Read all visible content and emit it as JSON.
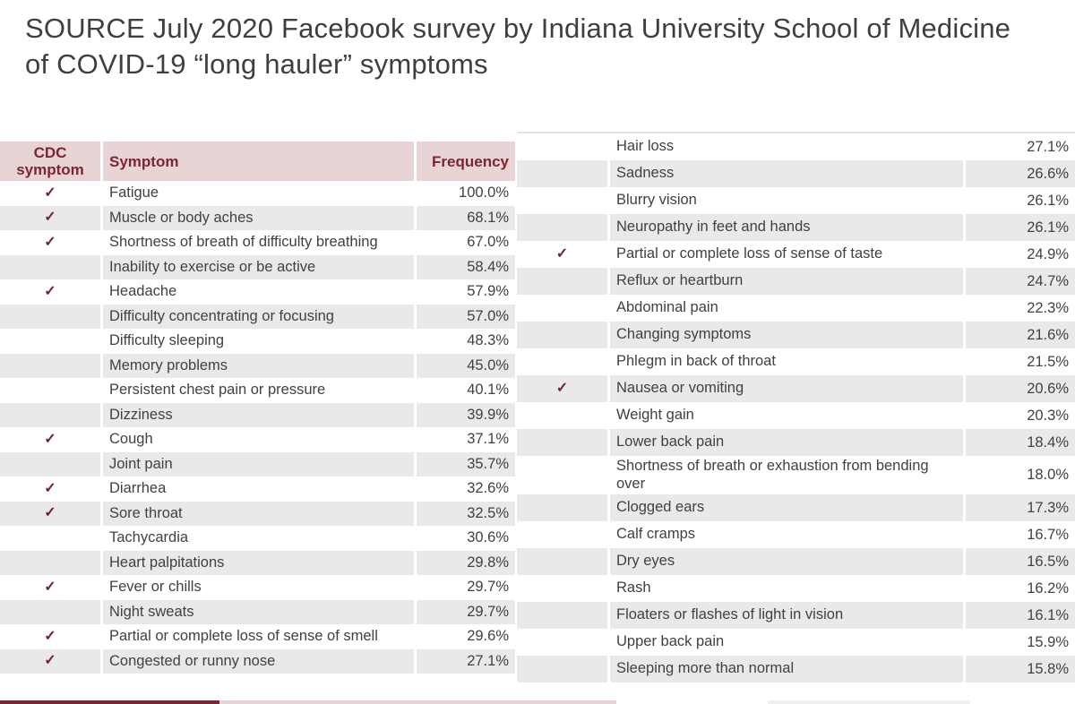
{
  "title": "SOURCE July 2020 Facebook survey by Indiana University School of Medicine of COVID-19 “long hauler” symptoms",
  "header": {
    "cdc_symptom": "CDC symptom",
    "symptom": "Symptom",
    "frequency": "Frequency"
  },
  "check_glyph": "✓",
  "colors": {
    "header_bg": "#e8d4d5",
    "maroon_accent": "#7d2533",
    "checkmark": "#6d2430",
    "row_stripe": "#e9e9e9",
    "body_text": "#3f4144",
    "title_text": "#3d4043"
  },
  "chart_data": {
    "type": "table",
    "title": "SOURCE July 2020 Facebook survey by Indiana University School of Medicine of COVID-19 “long hauler” symptoms",
    "columns": [
      "CDC symptom",
      "Symptom",
      "Frequency"
    ],
    "layout_hint": "single table split into two side-by-side panels, alternating row striping, no header on right panel",
    "left_rows": [
      {
        "cdc": true,
        "symptom": "Fatigue",
        "frequency": "100.0%"
      },
      {
        "cdc": true,
        "symptom": "Muscle or body aches",
        "frequency": "68.1%"
      },
      {
        "cdc": true,
        "symptom": "Shortness of breath of difficulty breathing",
        "frequency": "67.0%"
      },
      {
        "cdc": false,
        "symptom": "Inability to exercise or be active",
        "frequency": "58.4%"
      },
      {
        "cdc": true,
        "symptom": "Headache",
        "frequency": "57.9%"
      },
      {
        "cdc": false,
        "symptom": "Difficulty concentrating or focusing",
        "frequency": "57.0%"
      },
      {
        "cdc": false,
        "symptom": "Difficulty sleeping",
        "frequency": "48.3%"
      },
      {
        "cdc": false,
        "symptom": "Memory problems",
        "frequency": "45.0%"
      },
      {
        "cdc": false,
        "symptom": "Persistent chest pain or pressure",
        "frequency": "40.1%"
      },
      {
        "cdc": false,
        "symptom": "Dizziness",
        "frequency": "39.9%"
      },
      {
        "cdc": true,
        "symptom": "Cough",
        "frequency": "37.1%"
      },
      {
        "cdc": false,
        "symptom": "Joint pain",
        "frequency": "35.7%"
      },
      {
        "cdc": true,
        "symptom": "Diarrhea",
        "frequency": "32.6%"
      },
      {
        "cdc": true,
        "symptom": "Sore throat",
        "frequency": "32.5%"
      },
      {
        "cdc": false,
        "symptom": "Tachycardia",
        "frequency": "30.6%"
      },
      {
        "cdc": false,
        "symptom": "Heart palpitations",
        "frequency": "29.8%"
      },
      {
        "cdc": true,
        "symptom": "Fever or chills",
        "frequency": "29.7%"
      },
      {
        "cdc": false,
        "symptom": "Night sweats",
        "frequency": "29.7%"
      },
      {
        "cdc": true,
        "symptom": "Partial or complete loss of sense of smell",
        "frequency": "29.6%"
      },
      {
        "cdc": true,
        "symptom": "Congested or runny nose",
        "frequency": "27.1%"
      }
    ],
    "right_rows": [
      {
        "cdc": false,
        "symptom": "Hair loss",
        "frequency": "27.1%"
      },
      {
        "cdc": false,
        "symptom": "Sadness",
        "frequency": "26.6%"
      },
      {
        "cdc": false,
        "symptom": "Blurry vision",
        "frequency": "26.1%"
      },
      {
        "cdc": false,
        "symptom": "Neuropathy in feet and hands",
        "frequency": "26.1%"
      },
      {
        "cdc": true,
        "symptom": "Partial or complete loss of sense of taste",
        "frequency": "24.9%"
      },
      {
        "cdc": false,
        "symptom": "Reflux or heartburn",
        "frequency": "24.7%"
      },
      {
        "cdc": false,
        "symptom": "Abdominal pain",
        "frequency": "22.3%"
      },
      {
        "cdc": false,
        "symptom": "Changing symptoms",
        "frequency": "21.6%"
      },
      {
        "cdc": false,
        "symptom": "Phlegm in back of throat",
        "frequency": "21.5%"
      },
      {
        "cdc": true,
        "symptom": "Nausea or vomiting",
        "frequency": "20.6%"
      },
      {
        "cdc": false,
        "symptom": "Weight gain",
        "frequency": "20.3%"
      },
      {
        "cdc": false,
        "symptom": "Lower back pain",
        "frequency": "18.4%"
      },
      {
        "cdc": false,
        "symptom": "Shortness of breath or exhaustion from bending over",
        "frequency": "18.0%"
      },
      {
        "cdc": false,
        "symptom": "Clogged ears",
        "frequency": "17.3%"
      },
      {
        "cdc": false,
        "symptom": "Calf cramps",
        "frequency": "16.7%"
      },
      {
        "cdc": false,
        "symptom": "Dry eyes",
        "frequency": "16.5%"
      },
      {
        "cdc": false,
        "symptom": "Rash",
        "frequency": "16.2%"
      },
      {
        "cdc": false,
        "symptom": "Floaters or flashes of light in vision",
        "frequency": "16.1%"
      },
      {
        "cdc": false,
        "symptom": "Upper back pain",
        "frequency": "15.9%"
      },
      {
        "cdc": false,
        "symptom": "Sleeping more than normal",
        "frequency": "15.8%"
      }
    ]
  }
}
